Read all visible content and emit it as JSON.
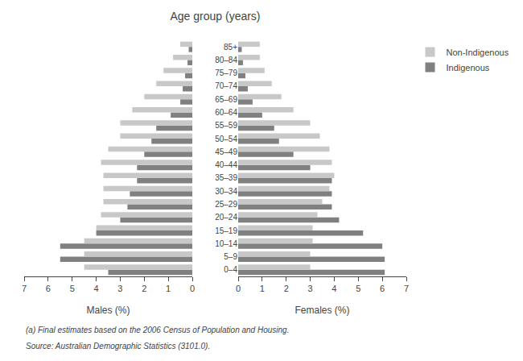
{
  "chart_data": [
    {
      "type": "bar",
      "orientation": "horizontal",
      "title": "Age group (years)",
      "xlabel": "Males (%)",
      "categories": [
        "0–4",
        "5–9",
        "10–14",
        "15–19",
        "20–24",
        "25–29",
        "30–34",
        "35–39",
        "40–44",
        "45–49",
        "50–54",
        "55–59",
        "60–64",
        "65–69",
        "70–74",
        "75–79",
        "80–84",
        "85+"
      ],
      "series": [
        {
          "name": "Non-Indigenous",
          "color": "#c8c8c8",
          "values": [
            4.5,
            4.5,
            4.5,
            4.0,
            3.8,
            3.7,
            3.7,
            3.7,
            3.8,
            3.5,
            3.0,
            3.0,
            2.5,
            2.0,
            1.5,
            1.2,
            0.8,
            0.5
          ]
        },
        {
          "name": "Indigenous",
          "color": "#808080",
          "values": [
            3.5,
            5.5,
            5.5,
            4.0,
            3.0,
            2.7,
            2.6,
            2.3,
            2.3,
            2.0,
            1.7,
            1.5,
            0.9,
            0.5,
            0.4,
            0.3,
            0.2,
            0.15
          ]
        }
      ],
      "xlim": [
        7,
        0
      ],
      "xticks": [
        0,
        1,
        2,
        3,
        4,
        5,
        6,
        7
      ],
      "grid": false,
      "legend": "upper right",
      "tick_labels": "x",
      "annotations": [
        "(a) Final estimates based on the 2006 Census of Population and Housing.",
        "Source: Australian Demographic Statistics (3101.0)."
      ]
    },
    {
      "type": "bar",
      "orientation": "horizontal",
      "xlabel": "Females (%)",
      "categories": [
        "0–4",
        "5–9",
        "10–14",
        "15–19",
        "20–24",
        "25–29",
        "30–34",
        "35–39",
        "40–44",
        "45–49",
        "50–54",
        "55–59",
        "60–64",
        "65–69",
        "70–74",
        "75–79",
        "80–84",
        "85+"
      ],
      "series": [
        {
          "name": "Non-Indigenous",
          "color": "#c8c8c8",
          "values": [
            3.0,
            3.0,
            3.1,
            3.1,
            3.3,
            3.5,
            3.8,
            4.0,
            3.9,
            3.8,
            3.4,
            3.0,
            2.3,
            1.8,
            1.4,
            1.1,
            0.9,
            0.9
          ]
        },
        {
          "name": "Indigenous",
          "color": "#808080",
          "values": [
            6.1,
            6.1,
            6.0,
            5.2,
            4.2,
            3.9,
            3.9,
            3.9,
            3.0,
            2.3,
            1.7,
            1.5,
            1.0,
            0.6,
            0.4,
            0.3,
            0.2,
            0.15
          ]
        }
      ],
      "xlim": [
        0,
        7
      ],
      "xticks": [
        0,
        1,
        2,
        3,
        4,
        5,
        6,
        7
      ],
      "grid": false
    }
  ]
}
